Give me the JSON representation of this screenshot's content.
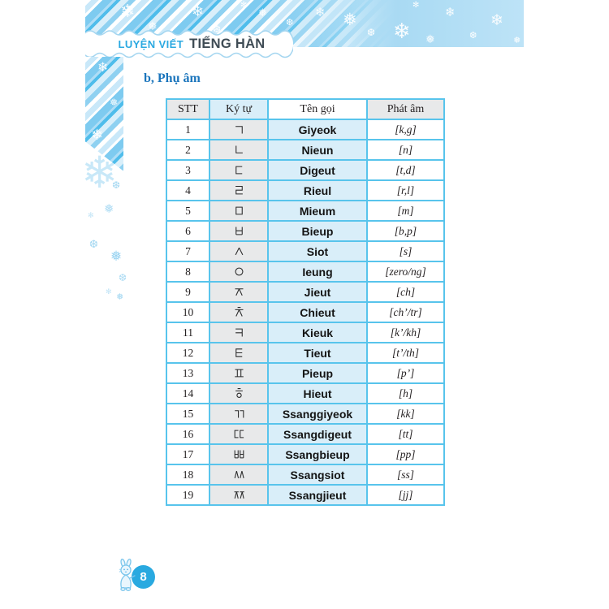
{
  "banner": {
    "title_light": "LUYỆN VIẾT",
    "title_dark": "TIẾNG HÀN"
  },
  "section": {
    "heading": "b, Phụ âm"
  },
  "table": {
    "headers": [
      "STT",
      "Ký tự",
      "Tên gọi",
      "Phát âm"
    ],
    "rows": [
      {
        "stt": "1",
        "char": "ㄱ",
        "name": "Giyeok",
        "pron": "[k,g]"
      },
      {
        "stt": "2",
        "char": "ㄴ",
        "name": "Nieun",
        "pron": "[n]"
      },
      {
        "stt": "3",
        "char": "ㄷ",
        "name": "Digeut",
        "pron": "[t,d]"
      },
      {
        "stt": "4",
        "char": "ㄹ",
        "name": "Rieul",
        "pron": "[r,l]"
      },
      {
        "stt": "5",
        "char": "ㅁ",
        "name": "Mieum",
        "pron": "[m]"
      },
      {
        "stt": "6",
        "char": "ㅂ",
        "name": "Bieup",
        "pron": "[b,p]"
      },
      {
        "stt": "7",
        "char": "ㅅ",
        "name": "Siot",
        "pron": "[s]"
      },
      {
        "stt": "8",
        "char": "ㅇ",
        "name": "Ieung",
        "pron": "[zero/ng]"
      },
      {
        "stt": "9",
        "char": "ㅈ",
        "name": "Jieut",
        "pron": "[ch]"
      },
      {
        "stt": "10",
        "char": "ㅊ",
        "name": "Chieut",
        "pron": "[ch’/tr]"
      },
      {
        "stt": "11",
        "char": "ㅋ",
        "name": "Kieuk",
        "pron": "[k’/kh]"
      },
      {
        "stt": "12",
        "char": "ㅌ",
        "name": "Tieut",
        "pron": "[t’/th]"
      },
      {
        "stt": "13",
        "char": "ㅍ",
        "name": "Pieup",
        "pron": "[p’]"
      },
      {
        "stt": "14",
        "char": "ㅎ",
        "name": "Hieut",
        "pron": "[h]"
      },
      {
        "stt": "15",
        "char": "ㄲ",
        "name": "Ssanggiyeok",
        "pron": "[kk]"
      },
      {
        "stt": "16",
        "char": "ㄸ",
        "name": "Ssangdigeut",
        "pron": "[tt]"
      },
      {
        "stt": "17",
        "char": "ㅃ",
        "name": "Ssangbieup",
        "pron": "[pp]"
      },
      {
        "stt": "18",
        "char": "ㅆ",
        "name": "Ssangsiot",
        "pron": "[ss]"
      },
      {
        "stt": "19",
        "char": "ㅉ",
        "name": "Ssangjieut",
        "pron": "[jj]"
      }
    ]
  },
  "footer": {
    "page_number": "8"
  },
  "icons": {
    "snowflake": "❄",
    "snowflake_alt": "❅",
    "snowflake_heavy": "❆",
    "sparkle": "✻",
    "mascot": "snow-bunny"
  },
  "colors": {
    "table_border": "#58C4EC",
    "cell_gray": "#E8E9EA",
    "cell_blue": "#D9EEF9",
    "accent_blue": "#29A9E0",
    "heading_blue": "#1B75BC",
    "banner_light_text": "#2BA9E1",
    "banner_dark_text": "#3F4C55",
    "band_blue": "#BDE3F7"
  }
}
